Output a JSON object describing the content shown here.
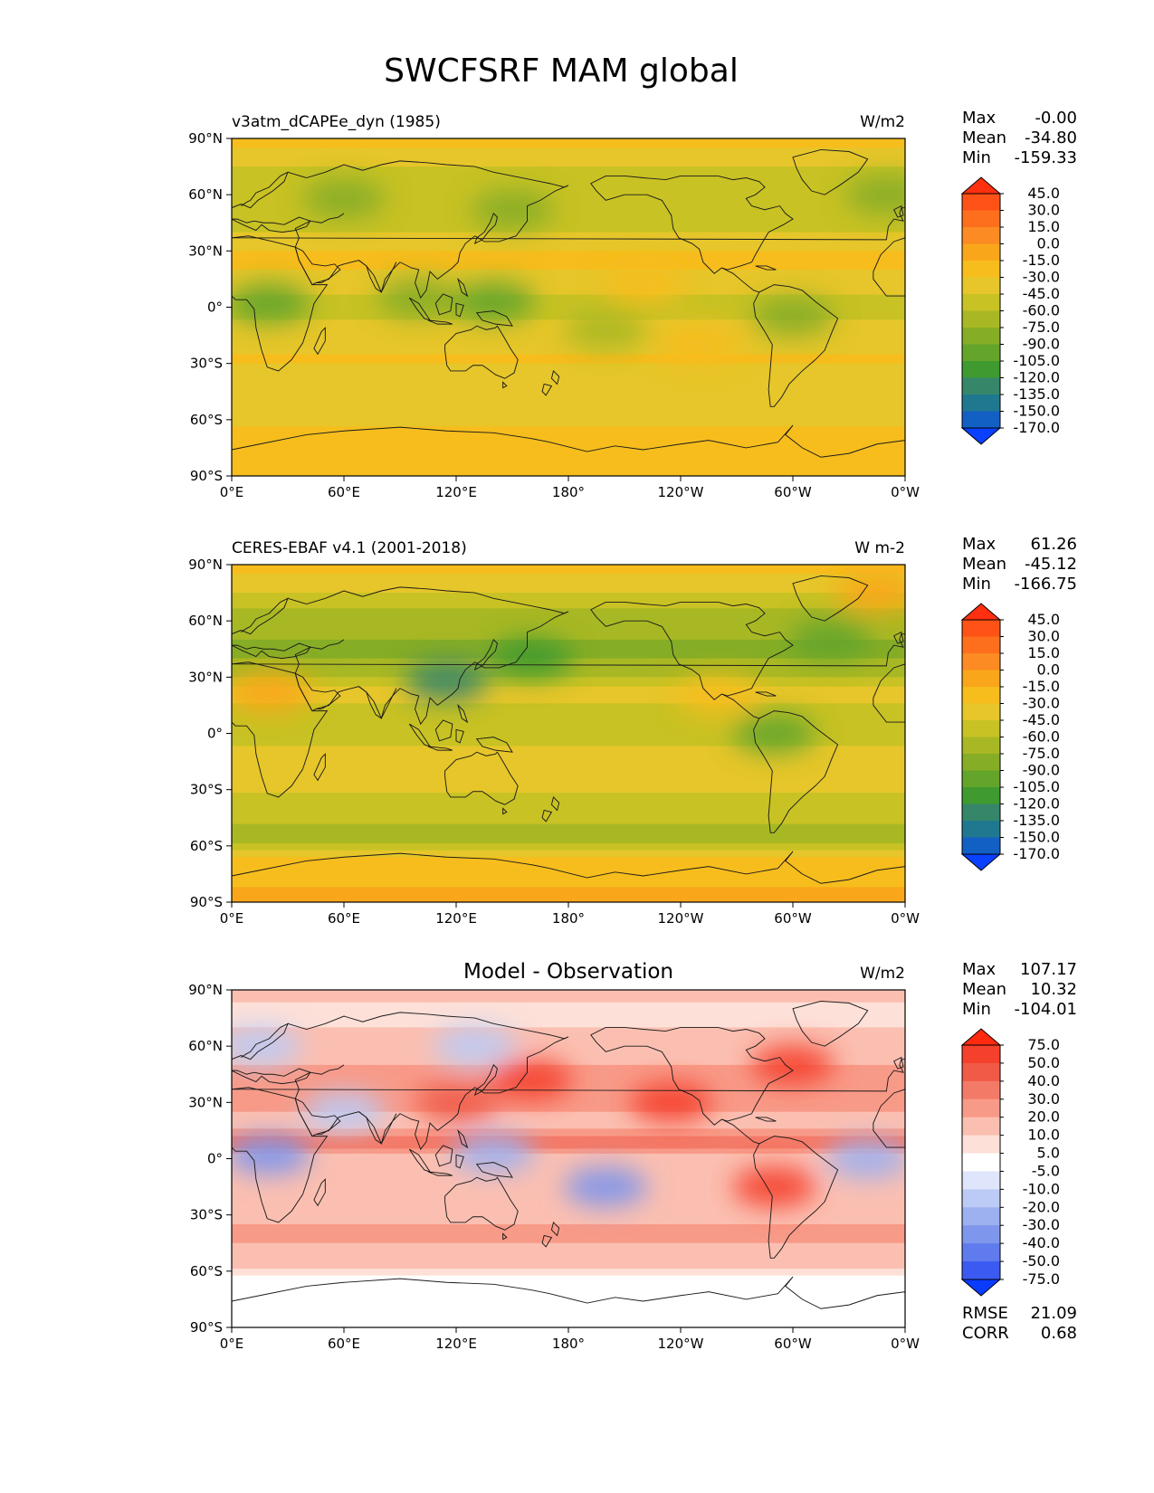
{
  "figure": {
    "title": "SWCFSRF MAM global"
  },
  "chart_data": [
    {
      "type": "heatmap",
      "panel": "test",
      "title": "v3atm_dCAPEe_dyn (1985)",
      "units": "W/m2",
      "stats": [
        {
          "label": "Max",
          "value": "-0.00"
        },
        {
          "label": "Mean",
          "value": "-34.80"
        },
        {
          "label": "Min",
          "value": "-159.33"
        }
      ],
      "colorbar": {
        "levels": [
          "45.0",
          "30.0",
          "15.0",
          "0.0",
          "-15.0",
          "-30.0",
          "-45.0",
          "-60.0",
          "-75.0",
          "-90.0",
          "-105.0",
          "-120.0",
          "-135.0",
          "-150.0",
          "-170.0"
        ],
        "colors": [
          "#ff2f10",
          "#fe5216",
          "#fd6f1c",
          "#fb8b22",
          "#faa61a",
          "#f6bd1d",
          "#e6c62a",
          "#c8c224",
          "#a8b824",
          "#86ad26",
          "#63a52a",
          "#3f9a30",
          "#36866a",
          "#1f7890",
          "#1260c4",
          "#0a40ff"
        ]
      },
      "xticks": [
        "0°E",
        "60°E",
        "120°E",
        "180°",
        "120°W",
        "60°W",
        "0°W"
      ],
      "yticks": [
        "90°N",
        "60°N",
        "30°N",
        "0°",
        "30°S",
        "60°S",
        "90°S"
      ],
      "bands": [
        {
          "lat": 90,
          "value": -18
        },
        {
          "lat": 75,
          "value": -42
        },
        {
          "lat": 55,
          "value": -60
        },
        {
          "lat": 40,
          "value": -45
        },
        {
          "lat": 25,
          "value": -25
        },
        {
          "lat": 10,
          "value": -40
        },
        {
          "lat": 0,
          "value": -52
        },
        {
          "lat": -10,
          "value": -40
        },
        {
          "lat": -25,
          "value": -28
        },
        {
          "lat": -40,
          "value": -34
        },
        {
          "lat": -55,
          "value": -40
        },
        {
          "lat": -68,
          "value": -20
        },
        {
          "lat": -90,
          "value": -15
        }
      ],
      "blobs": [
        {
          "lon": 150,
          "lat": 52,
          "value": -85
        },
        {
          "lon": 140,
          "lat": 3,
          "value": -95
        },
        {
          "lon": 100,
          "lat": 5,
          "value": -85
        },
        {
          "lon": 20,
          "lat": 2,
          "value": -90
        },
        {
          "lon": 300,
          "lat": -5,
          "value": -85
        },
        {
          "lon": 350,
          "lat": 60,
          "value": -80
        },
        {
          "lon": 60,
          "lat": 58,
          "value": -80
        },
        {
          "lon": 200,
          "lat": -12,
          "value": -70
        },
        {
          "lon": 220,
          "lat": 12,
          "value": -15
        },
        {
          "lon": 250,
          "lat": -20,
          "value": -20
        }
      ]
    },
    {
      "type": "heatmap",
      "panel": "reference",
      "title": "CERES-EBAF v4.1 (2001-2018)",
      "units": "W m-2",
      "stats": [
        {
          "label": "Max",
          "value": "61.26"
        },
        {
          "label": "Mean",
          "value": "-45.12"
        },
        {
          "label": "Min",
          "value": "-166.75"
        }
      ],
      "colorbar": {
        "levels": [
          "45.0",
          "30.0",
          "15.0",
          "0.0",
          "-15.0",
          "-30.0",
          "-45.0",
          "-60.0",
          "-75.0",
          "-90.0",
          "-105.0",
          "-120.0",
          "-135.0",
          "-150.0",
          "-170.0"
        ],
        "colors": [
          "#ff2f10",
          "#fe5216",
          "#fd6f1c",
          "#fb8b22",
          "#faa61a",
          "#f6bd1d",
          "#e6c62a",
          "#c8c224",
          "#a8b824",
          "#86ad26",
          "#63a52a",
          "#3f9a30",
          "#36866a",
          "#1f7890",
          "#1260c4",
          "#0a40ff"
        ]
      },
      "xticks": [
        "0°E",
        "60°E",
        "120°E",
        "180°",
        "120°W",
        "60°W",
        "0°W"
      ],
      "yticks": [
        "90°N",
        "60°N",
        "30°N",
        "0°",
        "30°S",
        "60°S",
        "90°S"
      ],
      "bands": [
        {
          "lat": 90,
          "value": -20
        },
        {
          "lat": 75,
          "value": -45
        },
        {
          "lat": 50,
          "value": -80
        },
        {
          "lat": 35,
          "value": -70
        },
        {
          "lat": 20,
          "value": -35
        },
        {
          "lat": 8,
          "value": -55
        },
        {
          "lat": 0,
          "value": -50
        },
        {
          "lat": -10,
          "value": -42
        },
        {
          "lat": -25,
          "value": -38
        },
        {
          "lat": -45,
          "value": -58
        },
        {
          "lat": -55,
          "value": -68
        },
        {
          "lat": -66,
          "value": -25
        },
        {
          "lat": -90,
          "value": -10
        }
      ],
      "blobs": [
        {
          "lon": 160,
          "lat": 40,
          "value": -110
        },
        {
          "lon": 115,
          "lat": 28,
          "value": -120
        },
        {
          "lon": 320,
          "lat": 50,
          "value": -100
        },
        {
          "lon": 290,
          "lat": 0,
          "value": -90
        },
        {
          "lon": 20,
          "lat": 22,
          "value": -12
        },
        {
          "lon": 345,
          "lat": 75,
          "value": -10
        },
        {
          "lon": 260,
          "lat": 20,
          "value": -25
        }
      ]
    },
    {
      "type": "heatmap",
      "panel": "difference",
      "title": "Model - Observation",
      "units": "W/m2",
      "stats": [
        {
          "label": "Max",
          "value": "107.17"
        },
        {
          "label": "Mean",
          "value": "10.32"
        },
        {
          "label": "Min",
          "value": "-104.01"
        }
      ],
      "extra_stats": [
        {
          "label": "RMSE",
          "value": "21.09"
        },
        {
          "label": "CORR",
          "value": "0.68"
        }
      ],
      "colorbar": {
        "levels": [
          "75.0",
          "50.0",
          "40.0",
          "30.0",
          "20.0",
          "10.0",
          "5.0",
          "-5.0",
          "-10.0",
          "-20.0",
          "-30.0",
          "-40.0",
          "-50.0",
          "-75.0"
        ],
        "colors": [
          "#ff2a10",
          "#f5402c",
          "#f05a46",
          "#f47a68",
          "#f89a88",
          "#fbbfb1",
          "#fde0d8",
          "#ffffff",
          "#dfe6fb",
          "#bccbf5",
          "#9db0ef",
          "#7e96ec",
          "#5f7bed",
          "#3a5af2",
          "#0a3cff"
        ]
      },
      "xticks": [
        "0°E",
        "60°E",
        "120°E",
        "180°",
        "120°W",
        "60°W",
        "0°W"
      ],
      "yticks": [
        "90°N",
        "60°N",
        "30°N",
        "0°",
        "30°S",
        "60°S",
        "90°S"
      ],
      "bands": [
        {
          "lat": 90,
          "value": 12
        },
        {
          "lat": 70,
          "value": 8
        },
        {
          "lat": 50,
          "value": 22
        },
        {
          "lat": 35,
          "value": 28
        },
        {
          "lat": 20,
          "value": 15
        },
        {
          "lat": 8,
          "value": 35
        },
        {
          "lat": 0,
          "value": 10
        },
        {
          "lat": -10,
          "value": 20
        },
        {
          "lat": -25,
          "value": 15
        },
        {
          "lat": -40,
          "value": 22
        },
        {
          "lat": -55,
          "value": 12
        },
        {
          "lat": -66,
          "value": 2
        },
        {
          "lat": -90,
          "value": 0
        }
      ],
      "blobs": [
        {
          "lon": 120,
          "lat": 30,
          "value": 50
        },
        {
          "lon": 160,
          "lat": 42,
          "value": 55
        },
        {
          "lon": 235,
          "lat": 30,
          "value": 55
        },
        {
          "lon": 300,
          "lat": 50,
          "value": 60
        },
        {
          "lon": 290,
          "lat": -15,
          "value": 55
        },
        {
          "lon": 20,
          "lat": 2,
          "value": -30
        },
        {
          "lon": 140,
          "lat": 3,
          "value": -25
        },
        {
          "lon": 200,
          "lat": -15,
          "value": -30
        },
        {
          "lon": 60,
          "lat": 25,
          "value": -15
        },
        {
          "lon": 340,
          "lat": 0,
          "value": -25
        },
        {
          "lon": 130,
          "lat": 60,
          "value": -15
        },
        {
          "lon": 15,
          "lat": 60,
          "value": -15
        }
      ]
    }
  ]
}
